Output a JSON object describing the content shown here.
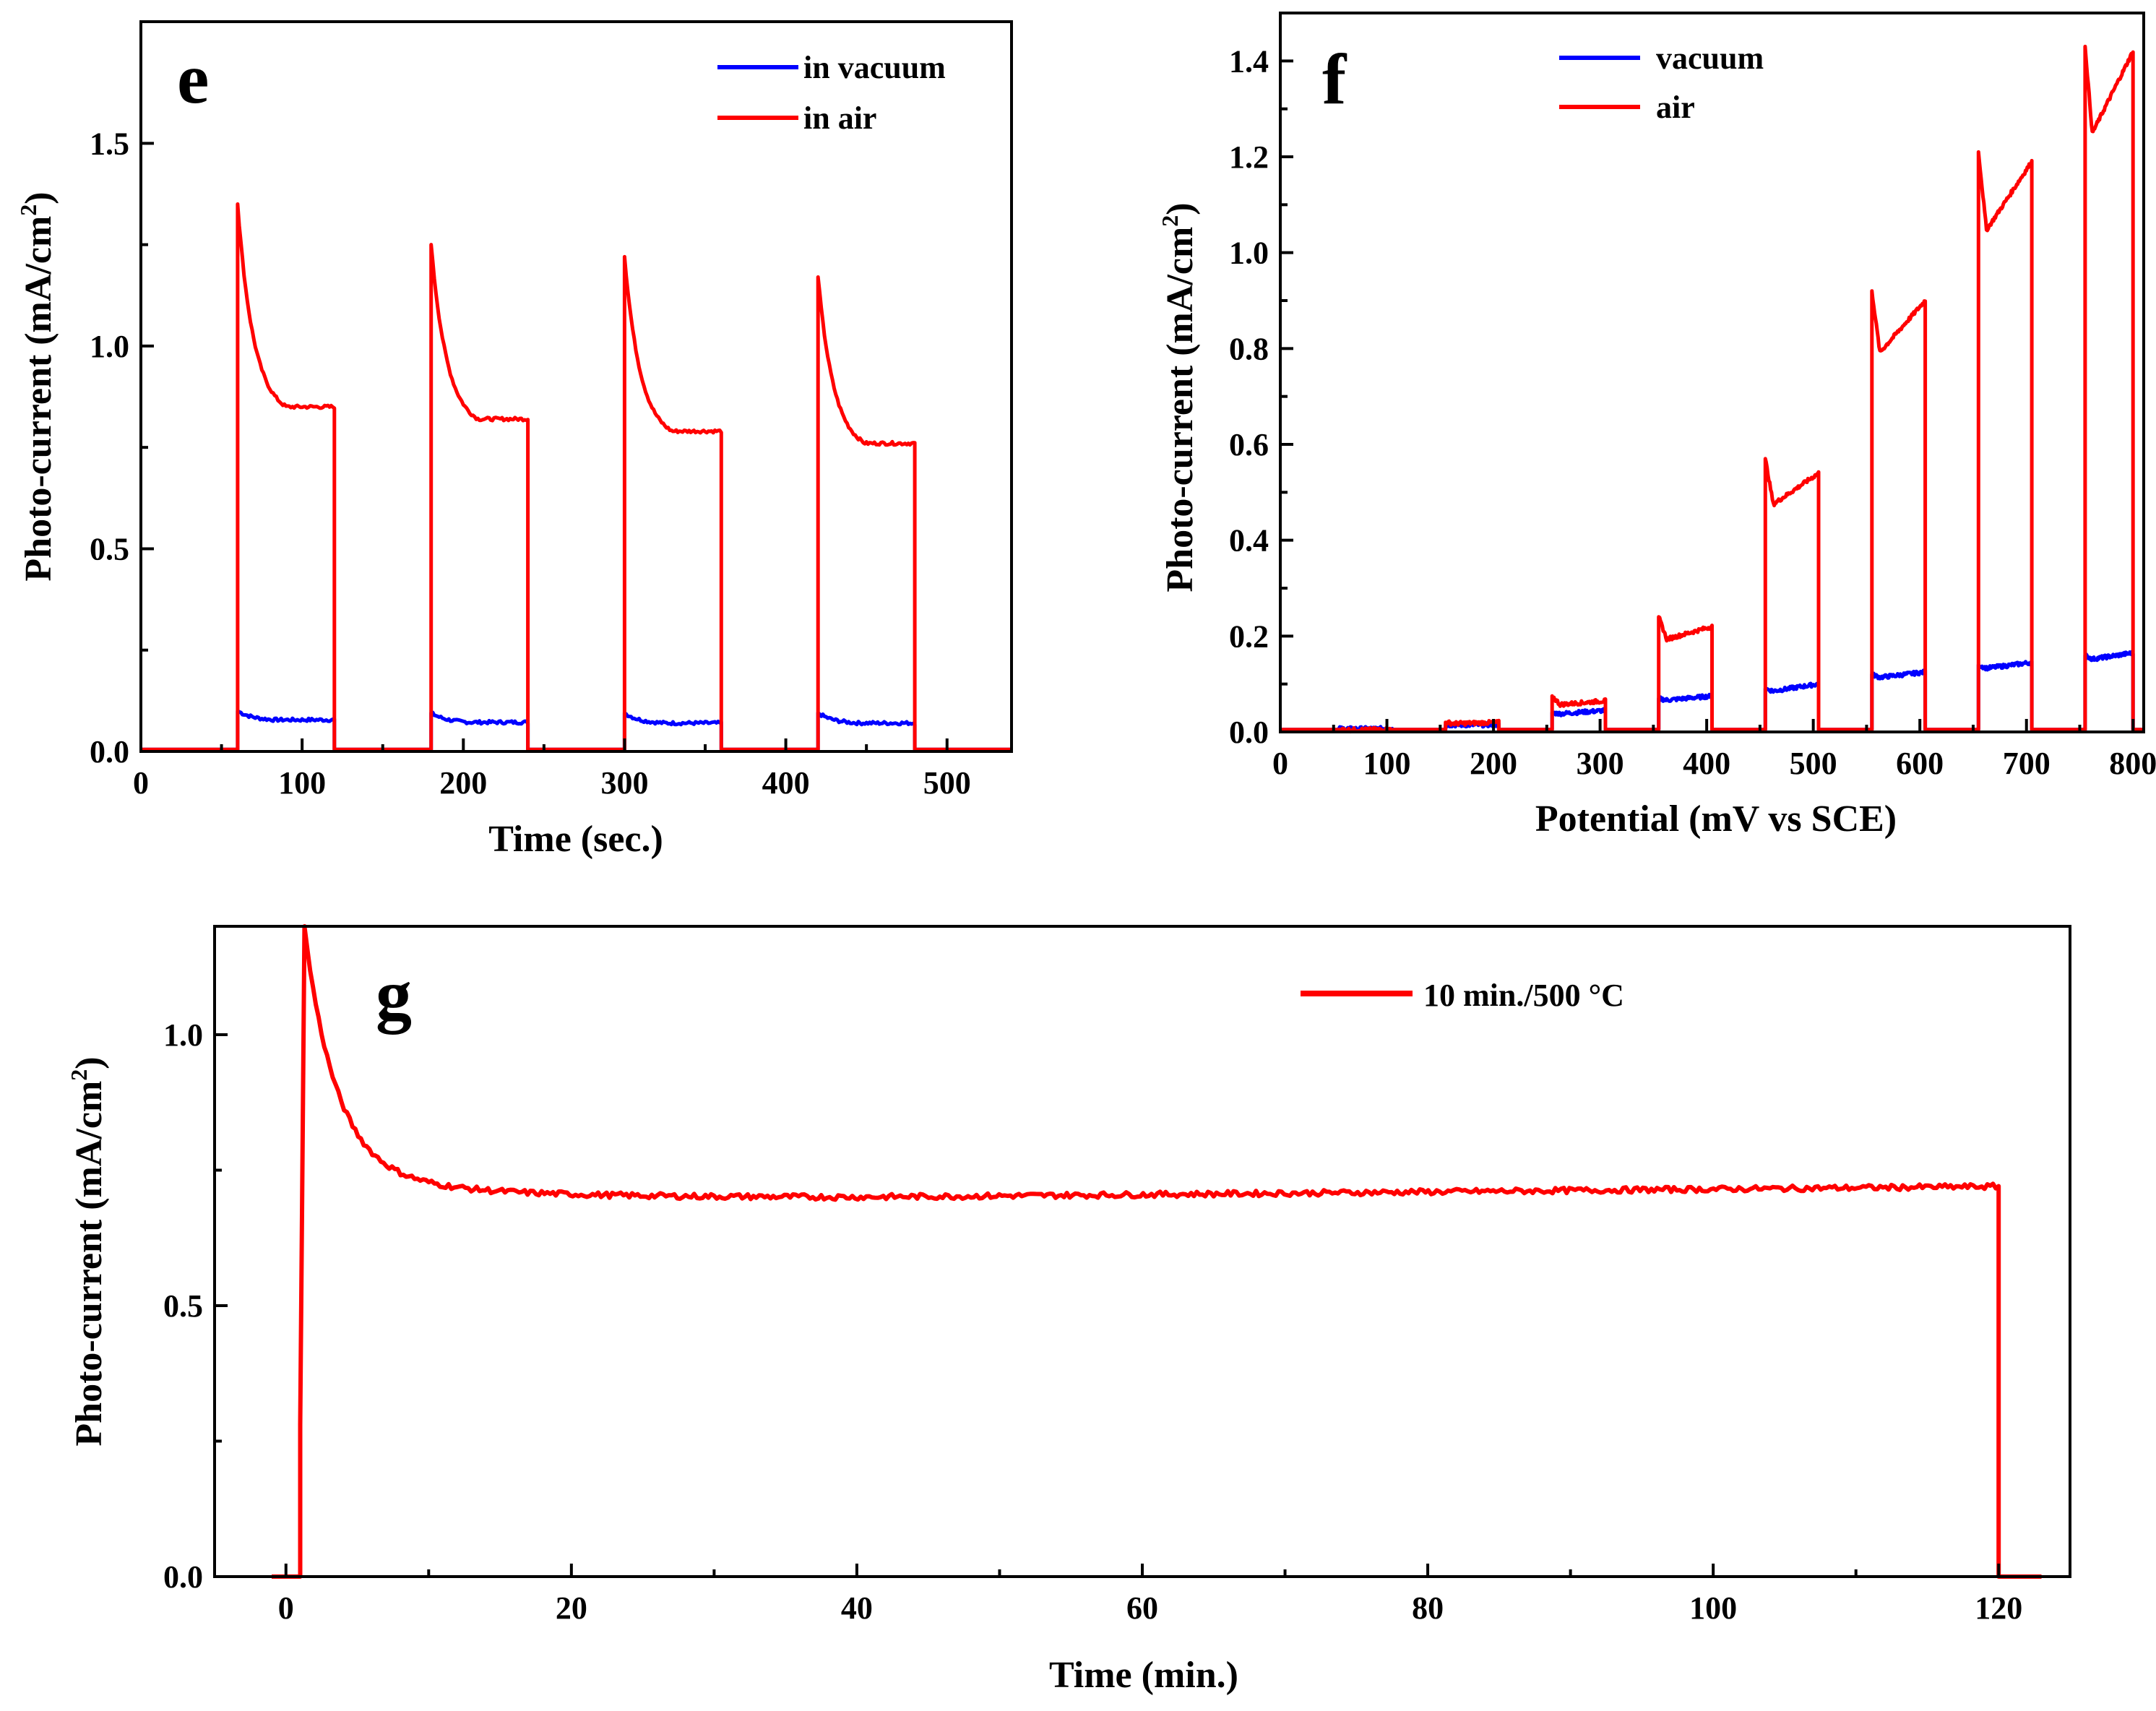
{
  "figure": "Photo-current measurements (panels e, f, g)",
  "chart_data": [
    {
      "panel": "e",
      "type": "line",
      "xlabel": "Time (sec.)",
      "ylabel": "Photo-current (mA/cm2)",
      "ylabel_main": "Photo-current (mA/cm",
      "ylabel_sup": "2",
      "ylabel_tail": ")",
      "xlim": [
        0,
        540
      ],
      "ylim": [
        0,
        1.8
      ],
      "xticks": [
        0,
        100,
        200,
        300,
        400,
        500
      ],
      "xtick_labels": [
        "0",
        "100",
        "200",
        "300",
        "400",
        "500"
      ],
      "yticks": [
        0.0,
        0.5,
        1.0,
        1.5
      ],
      "ytick_labels": [
        "0.0",
        "0.5",
        "1.0",
        "1.5"
      ],
      "legend_position": "top-right",
      "light_on_intervals": [
        [
          60,
          120
        ],
        [
          180,
          240
        ],
        [
          300,
          360
        ],
        [
          420,
          480
        ]
      ],
      "series": [
        {
          "name": "in vacuum",
          "color": "#0000ff",
          "peaks": [
            0.1,
            0.095,
            0.095,
            0.095
          ],
          "plateau_ends": [
            0.078,
            0.072,
            0.07,
            0.07
          ]
        },
        {
          "name": "in air",
          "color": "#ff0000",
          "peaks": [
            1.35,
            1.25,
            1.22,
            1.17
          ],
          "plateau_ends": [
            0.85,
            0.82,
            0.79,
            0.76
          ]
        }
      ]
    },
    {
      "panel": "f",
      "type": "line",
      "xlabel": "Potential (mV vs SCE)",
      "ylabel": "Photo-current (mA/cm2)",
      "ylabel_main": "Photo-current (mA/cm",
      "ylabel_sup": "2",
      "ylabel_tail": ")",
      "xlim": [
        0,
        810
      ],
      "ylim": [
        0,
        1.5
      ],
      "xticks": [
        0,
        100,
        200,
        300,
        400,
        500,
        600,
        700,
        800
      ],
      "xtick_labels": [
        "0",
        "100",
        "200",
        "300",
        "400",
        "500",
        "600",
        "700",
        "800"
      ],
      "yticks": [
        0.0,
        0.2,
        0.4,
        0.6,
        0.8,
        1.0,
        1.2,
        1.4
      ],
      "ytick_labels": [
        "0.0",
        "0.2",
        "0.4",
        "0.6",
        "0.8",
        "1.0",
        "1.2",
        "1.4"
      ],
      "legend_position": "top-center",
      "light_on_intervals": [
        [
          55,
          105
        ],
        [
          155,
          205
        ],
        [
          255,
          305
        ],
        [
          355,
          405
        ],
        [
          455,
          505
        ],
        [
          555,
          605
        ],
        [
          655,
          705
        ],
        [
          755,
          800
        ]
      ],
      "series": [
        {
          "name": "vacuum",
          "color": "#0000ff",
          "peaks": [
            0.007,
            0.015,
            0.04,
            0.07,
            0.09,
            0.12,
            0.14,
            0.16
          ],
          "plateau_ends": [
            0.007,
            0.015,
            0.045,
            0.075,
            0.1,
            0.125,
            0.145,
            0.165
          ]
        },
        {
          "name": "air",
          "color": "#ff0000",
          "peaks": [
            0.005,
            0.02,
            0.075,
            0.24,
            0.57,
            0.92,
            1.21,
            1.43
          ],
          "plateau_ends": [
            0.005,
            0.02,
            0.065,
            0.22,
            0.54,
            0.9,
            1.19,
            1.42
          ]
        }
      ]
    },
    {
      "panel": "g",
      "type": "line",
      "xlabel": "Time (min.)",
      "ylabel": "Photo-current (mA/cm2)",
      "ylabel_main": "Photo-current (mA/cm",
      "ylabel_sup": "2",
      "ylabel_tail": ")",
      "xlim": [
        -5,
        125
      ],
      "ylim": [
        0,
        1.2
      ],
      "xticks": [
        0,
        20,
        40,
        60,
        80,
        100,
        120
      ],
      "xtick_labels": [
        "0",
        "20",
        "40",
        "60",
        "80",
        "100",
        "120"
      ],
      "yticks": [
        0.0,
        0.5,
        1.0
      ],
      "ytick_labels": [
        "0.0",
        "0.5",
        "1.0"
      ],
      "legend_position": "top-right",
      "light_on_intervals": [
        [
          1,
          120
        ]
      ],
      "series": [
        {
          "name": "10 min./500 °C",
          "color": "#ff0000",
          "peak": 1.2,
          "steady_state": 0.7,
          "end_value": 0.72
        }
      ]
    }
  ]
}
